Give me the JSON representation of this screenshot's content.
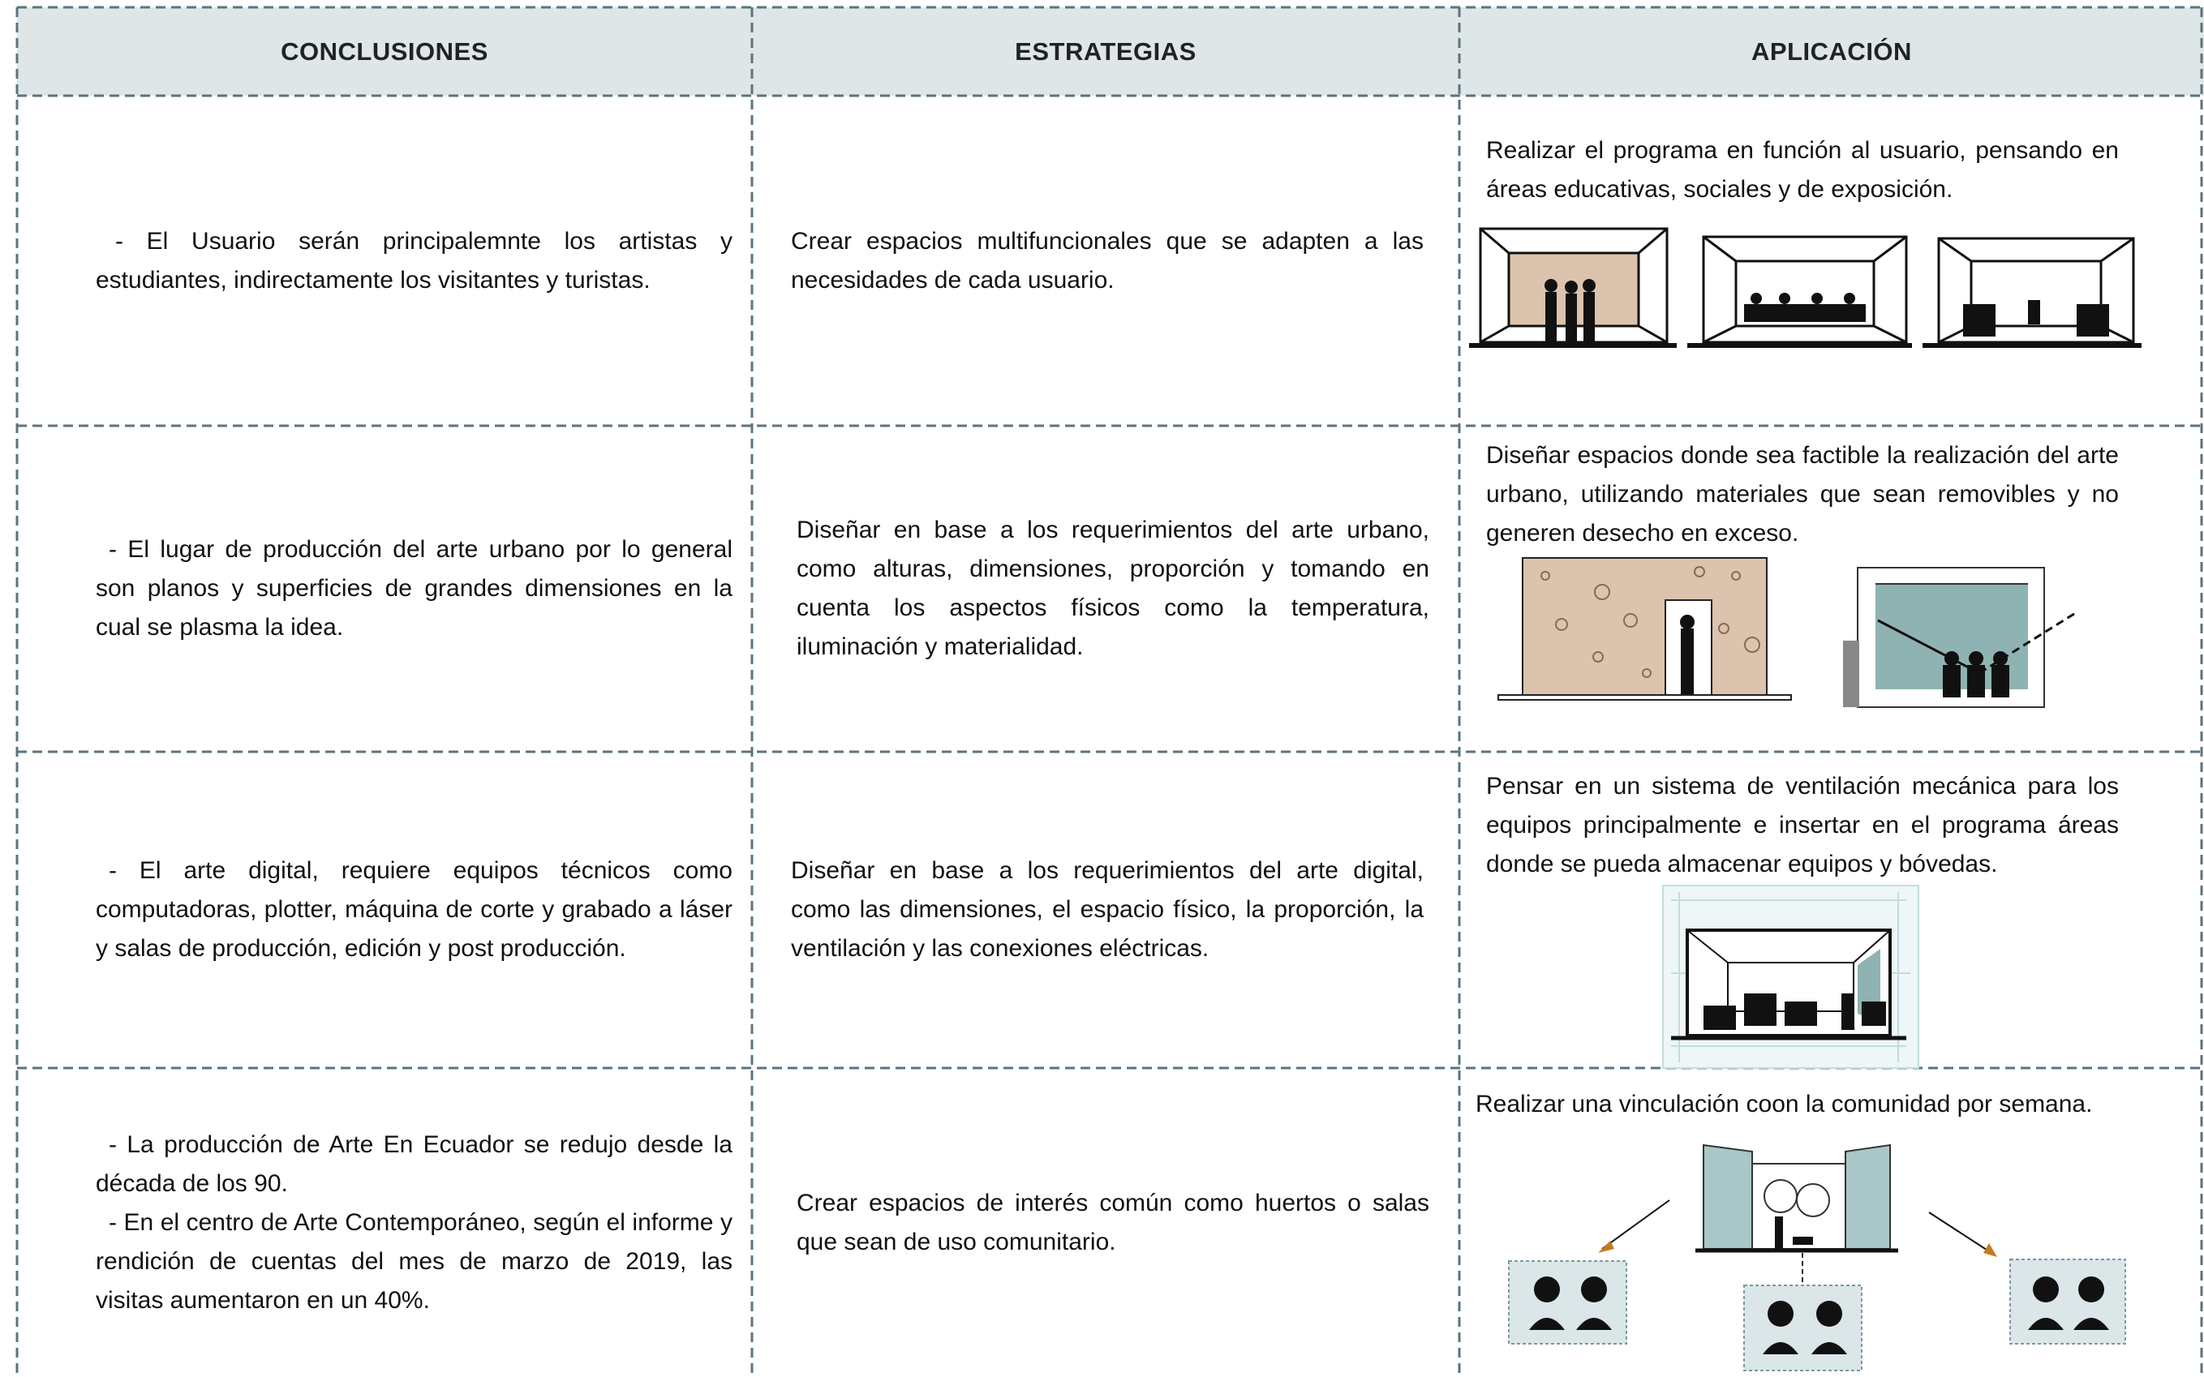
{
  "table": {
    "headers": [
      "CONCLUSIONES",
      "ESTRATEGIAS",
      "APLICACIÓN"
    ],
    "rows": [
      {
        "conclusion": [
          "- El Usuario serán principalemnte los artistas y estudiantes, indirectamente los visitantes y turistas."
        ],
        "strategy": "Crear espacios multifuncionales que se adapten a las necesidades de cada usuario.",
        "application": "Realizar el programa en función al usuario, pensando en áreas educativas, sociales y de exposición."
      },
      {
        "conclusion": [
          "- El lugar de producción del arte urbano por lo general son planos y superficies de grandes dimensiones  en la cual se plasma la idea."
        ],
        "strategy": "Diseñar en base a los requerimientos del arte urbano, como alturas, dimensiones, proporción y tomando en cuenta los aspectos físicos como la temperatura, iluminación y materialidad.",
        "application": "Diseñar espacios donde sea factible la realización del arte urbano, utilizando materiales que sean removibles y no generen desecho en exceso."
      },
      {
        "conclusion": [
          "- El arte digital, requiere equipos técnicos como computadoras, plotter, máquina de corte y grabado a láser y salas de producción, edición y post producción."
        ],
        "strategy": "Diseñar en base a los requerimientos del arte digital, como las dimensiones, el espacio físico, la proporción, la ventilación y las conexiones eléctricas.",
        "application": "Pensar en un sistema de ventilación mecánica para los equipos principalmente e insertar en el programa áreas donde se pueda almacenar equipos y bóvedas."
      },
      {
        "conclusion": [
          "- La producción de Arte En Ecuador se redujo desde la década de los 90.",
          "- En el centro de Arte Contemporáneo, según el informe y rendición de cuentas del  mes de marzo de 2019, las visitas aumentaron en un 40%."
        ],
        "strategy": "Crear espacios de interés común como huertos o salas que sean de uso comunitario.",
        "application": "Realizar una vinculación coon la comunidad por semana."
      }
    ]
  }
}
